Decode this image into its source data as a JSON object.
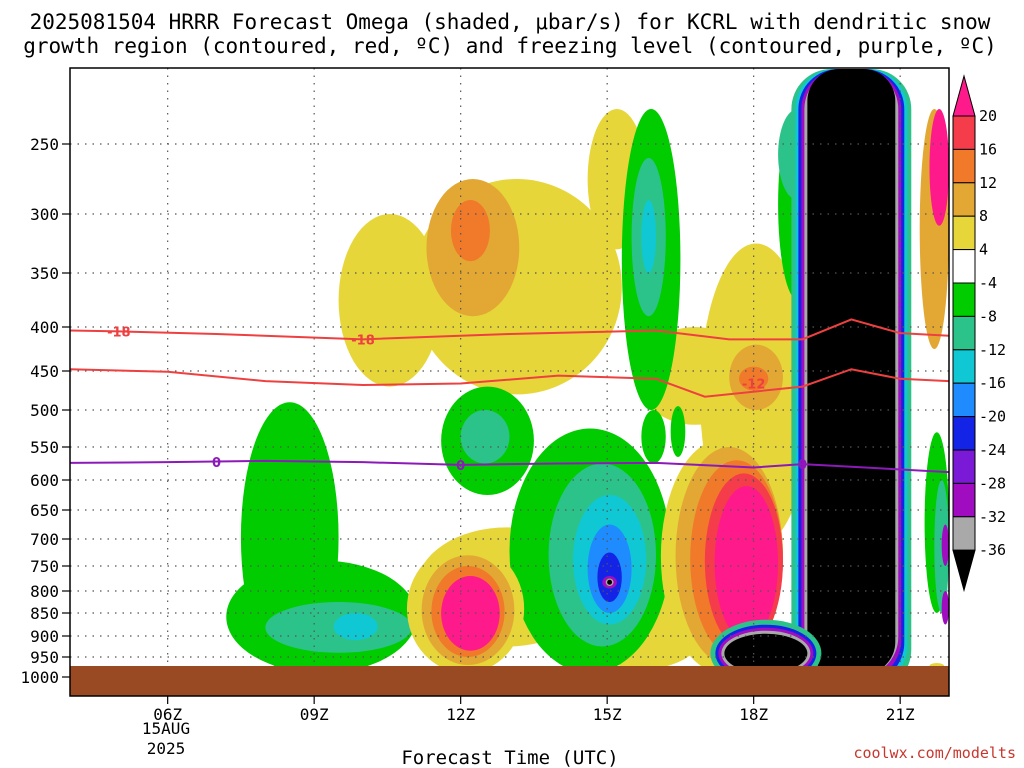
{
  "chart_data": {
    "type": "heatmap",
    "title_line1": "2025081504 HRRR Forecast Omega (shaded, μbar/s) for KCRL with dendritic snow",
    "title_line2": "growth region (contoured, red, ºC) and freezing level (contoured, purple, ºC)",
    "xlabel": "Forecast Time (UTC)",
    "credit": "coolwx.com/modelts",
    "x_hours": [
      6,
      9,
      12,
      15,
      18,
      21
    ],
    "x_tick_labels": [
      "06Z",
      "09Z",
      "12Z",
      "15Z",
      "18Z",
      "21Z"
    ],
    "x_date_label": [
      "15AUG",
      "2025"
    ],
    "xlim_hours": [
      4.0,
      22.0
    ],
    "y_levels": [
      250,
      300,
      350,
      400,
      450,
      500,
      550,
      600,
      650,
      700,
      750,
      800,
      850,
      900,
      950,
      1000
    ],
    "y_tick_labels": [
      "250",
      "300",
      "350",
      "400",
      "450",
      "500",
      "550",
      "600",
      "650",
      "700",
      "750",
      "800",
      "850",
      "900",
      "950",
      "1000"
    ],
    "ylim_hpa": [
      205,
      1020
    ],
    "surface_pressure_hpa": 965,
    "grid": true,
    "colorbar": {
      "levels": [
        20,
        16,
        12,
        8,
        4,
        -4,
        -8,
        -12,
        -16,
        -20,
        -24,
        -28,
        -32,
        -36
      ],
      "tick_labels": [
        "20",
        "16",
        "12",
        "8",
        "4",
        "-4",
        "-8",
        "-12",
        "-16",
        "-20",
        "-24",
        "-28",
        "-32",
        "-36"
      ],
      "colors": [
        "#ff1a8c",
        "#f53c4a",
        "#f07a2a",
        "#e3a834",
        "#e7d63a",
        "#ffffff",
        "#00cc00",
        "#2cc38a",
        "#0fc8d3",
        "#1e8cff",
        "#1424e6",
        "#7a1ad6",
        "#a00cc0",
        "#a9a9a9",
        "#000000"
      ]
    },
    "contours": [
      {
        "value": -18,
        "label": "-18",
        "color": "#ee4040",
        "x": [
          4.0,
          5.0,
          7.0,
          10.0,
          13.0,
          16.0,
          17.5,
          19.0,
          20.0,
          21.0,
          22.0
        ],
        "p": [
          404,
          405,
          408,
          414,
          408,
          404,
          414,
          414,
          393,
          407,
          410
        ],
        "label_at": [
          [
            5.0,
            405
          ],
          [
            10.0,
            414
          ]
        ]
      },
      {
        "value": -12,
        "label": "-12",
        "color": "#ee4040",
        "x": [
          4.0,
          6.0,
          8.0,
          10.0,
          12.0,
          14.0,
          16.0,
          17.0,
          19.0,
          20.0,
          21.0,
          22.0
        ],
        "p": [
          448,
          451,
          463,
          468,
          466,
          456,
          460,
          483,
          470,
          448,
          460,
          463
        ],
        "label_at": [
          [
            18.0,
            466
          ]
        ]
      },
      {
        "value": 0,
        "label": "0",
        "color": "#8c1ab8",
        "x": [
          4.0,
          6.0,
          8.0,
          10.0,
          12.0,
          14.0,
          16.0,
          18.0,
          19.0,
          20.0,
          22.0
        ],
        "p": [
          574,
          573,
          571,
          573,
          577,
          575,
          574,
          581,
          576,
          580,
          588
        ],
        "label_at": [
          [
            7.0,
            573
          ],
          [
            12.0,
            577
          ],
          [
            19.0,
            576
          ]
        ]
      }
    ],
    "regions": [
      {
        "v": 4,
        "hours": [
          9.5,
          11.6
        ],
        "levels": [
          1,
          4.4
        ]
      },
      {
        "v": 4,
        "hours": [
          11.0,
          15.3
        ],
        "levels": [
          0.5,
          4.6
        ]
      },
      {
        "v": 8,
        "hours": [
          11.3,
          13.2
        ],
        "levels": [
          0.5,
          2.8
        ]
      },
      {
        "v": 12,
        "hours": [
          11.8,
          12.6
        ],
        "levels": [
          0.8,
          1.8
        ]
      },
      {
        "v": 4,
        "hours": [
          15.6,
          18.0
        ],
        "levels": [
          3.0,
          5.4
        ]
      },
      {
        "v": 4,
        "hours": [
          16.9,
          19.2
        ],
        "levels": [
          1.5,
          9.3
        ]
      },
      {
        "v": 4,
        "hours": [
          11.1,
          14.8
        ],
        "levels": [
          8.6,
          13.5
        ]
      },
      {
        "v": 4,
        "hours": [
          14.5,
          17.0
        ],
        "levels": [
          11.0,
          14.6
        ]
      },
      {
        "v": 4,
        "hours": [
          14.6,
          15.8
        ],
        "levels": [
          -0.5,
          1.6
        ]
      },
      {
        "v": 4,
        "hours": [
          18.6,
          18.9
        ],
        "levels": [
          0.5,
          3.0
        ]
      },
      {
        "v": 8,
        "hours": [
          17.5,
          18.6
        ],
        "levels": [
          3.4,
          5.0
        ]
      },
      {
        "v": 12,
        "hours": [
          17.7,
          18.3
        ],
        "levels": [
          3.9,
          4.5
        ]
      },
      {
        "v": -4,
        "hours": [
          7.5,
          9.5
        ],
        "levels": [
          4.8,
          14.8
        ]
      },
      {
        "v": -4,
        "hours": [
          7.2,
          11.1
        ],
        "levels": [
          9.8,
          14.8
        ]
      },
      {
        "v": -8,
        "hours": [
          8.0,
          11.0
        ],
        "levels": [
          11.5,
          13.8
        ]
      },
      {
        "v": -12,
        "hours": [
          9.4,
          10.3
        ],
        "levels": [
          12.0,
          13.2
        ]
      },
      {
        "v": -4,
        "hours": [
          11.6,
          13.5
        ],
        "levels": [
          4.4,
          7.5
        ]
      },
      {
        "v": -8,
        "hours": [
          12.0,
          13.0
        ],
        "levels": [
          5.0,
          6.5
        ]
      },
      {
        "v": -4,
        "hours": [
          13.0,
          16.3
        ],
        "levels": [
          5.5,
          14.8
        ]
      },
      {
        "v": -8,
        "hours": [
          13.8,
          16.0
        ],
        "levels": [
          6.5,
          13.5
        ]
      },
      {
        "v": -12,
        "hours": [
          14.3,
          15.8
        ],
        "levels": [
          7.5,
          12.5
        ]
      },
      {
        "v": -16,
        "hours": [
          14.6,
          15.5
        ],
        "levels": [
          8.5,
          12.0
        ]
      },
      {
        "v": -20,
        "hours": [
          14.8,
          15.3
        ],
        "levels": [
          9.5,
          11.5
        ]
      },
      {
        "v": -28,
        "hours": [
          14.9,
          15.2
        ],
        "levels": [
          10.4,
          10.9
        ]
      },
      {
        "v": -32,
        "hours": [
          14.97,
          15.13
        ],
        "levels": [
          10.5,
          10.8
        ]
      },
      {
        "v": -36,
        "hours": [
          15.0,
          15.1
        ],
        "levels": [
          10.55,
          10.75
        ]
      },
      {
        "v": -4,
        "hours": [
          15.3,
          16.5
        ],
        "levels": [
          -0.5,
          5.0
        ]
      },
      {
        "v": -8,
        "hours": [
          15.5,
          16.2
        ],
        "levels": [
          0.2,
          2.8
        ]
      },
      {
        "v": -12,
        "hours": [
          15.7,
          16.0
        ],
        "levels": [
          0.8,
          2.0
        ]
      },
      {
        "v": -4,
        "hours": [
          15.7,
          16.2
        ],
        "levels": [
          5.0,
          6.5
        ]
      },
      {
        "v": -4,
        "hours": [
          16.3,
          16.6
        ],
        "levels": [
          4.9,
          6.3
        ]
      },
      {
        "v": -4,
        "hours": [
          18.5,
          19.3
        ],
        "levels": [
          -0.5,
          2.5
        ]
      },
      {
        "v": -8,
        "hours": [
          18.5,
          19.3
        ],
        "levels": [
          -0.5,
          0.8
        ]
      },
      {
        "v": -4,
        "hours": [
          16.8,
          17.3
        ],
        "levels": [
          7.5,
          8.8
        ]
      },
      {
        "v": -4,
        "hours": [
          21.5,
          22.0
        ],
        "levels": [
          5.6,
          12.0
        ]
      },
      {
        "v": -8,
        "hours": [
          21.7,
          22.0
        ],
        "levels": [
          7.0,
          12.0
        ]
      },
      {
        "v": -28,
        "hours": [
          21.85,
          22.0
        ],
        "levels": [
          8.5,
          10.0
        ]
      },
      {
        "v": -28,
        "hours": [
          21.85,
          22.0
        ],
        "levels": [
          11.0,
          12.5
        ]
      },
      {
        "v": 8,
        "hours": [
          21.4,
          22.0
        ],
        "levels": [
          -0.5,
          3.5
        ]
      },
      {
        "v": 20,
        "hours": [
          21.6,
          22.0
        ],
        "levels": [
          -0.5,
          1.2
        ]
      },
      {
        "v": 16,
        "hours": [
          20.8,
          21.1
        ],
        "levels": [
          10.5,
          12.0
        ]
      },
      {
        "v": 4,
        "hours": [
          21.6,
          21.9
        ],
        "levels": [
          14.3,
          14.6
        ]
      },
      {
        "v": 4,
        "hours": [
          16.1,
          18.6
        ],
        "levels": [
          5.8,
          14.8
        ]
      },
      {
        "v": 8,
        "hours": [
          16.4,
          18.6
        ],
        "levels": [
          6.0,
          14.4
        ]
      },
      {
        "v": 12,
        "hours": [
          16.7,
          18.6
        ],
        "levels": [
          6.4,
          14.0
        ]
      },
      {
        "v": 16,
        "hours": [
          17.0,
          18.6
        ],
        "levels": [
          6.8,
          13.6
        ]
      },
      {
        "v": 20,
        "hours": [
          17.2,
          18.5
        ],
        "levels": [
          7.2,
          13.2
        ]
      },
      {
        "v": 4,
        "hours": [
          10.9,
          13.3
        ],
        "levels": [
          9.2,
          14.8
        ]
      },
      {
        "v": 8,
        "hours": [
          11.2,
          13.1
        ],
        "levels": [
          9.6,
          14.4
        ]
      },
      {
        "v": 12,
        "hours": [
          11.4,
          12.9
        ],
        "levels": [
          10.0,
          14.0
        ]
      },
      {
        "v": 20,
        "hours": [
          11.6,
          12.8
        ],
        "levels": [
          10.4,
          13.7
        ]
      }
    ],
    "black_core": {
      "v": -36,
      "hours": [
        19.1,
        20.9
      ],
      "levels_top": -0.5,
      "levels_bottom": 14.85
    },
    "black_lower": {
      "v": -36,
      "hours": [
        17.4,
        19.1
      ],
      "levels": [
        12.9,
        14.8
      ]
    }
  }
}
